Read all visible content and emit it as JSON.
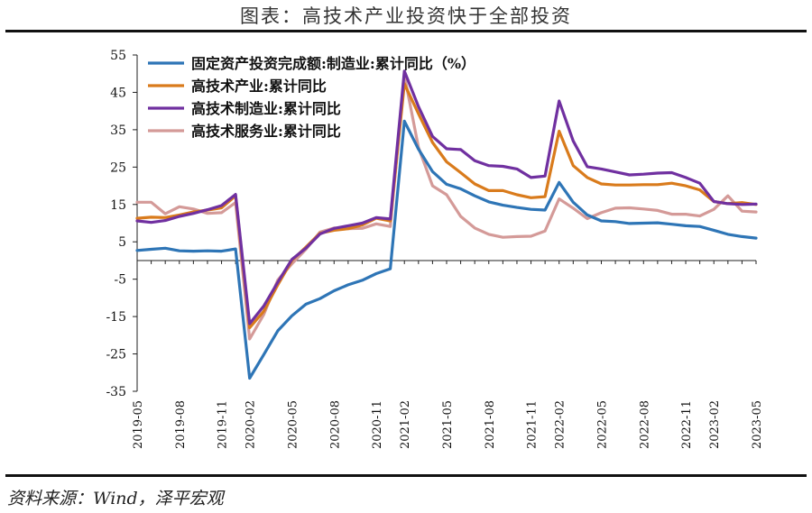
{
  "header": {
    "title": "图表：高技术产业投资快于全部投资"
  },
  "footer": {
    "source": "资料来源：Wind，泽平宏观"
  },
  "chart_data": {
    "type": "line",
    "title": "图表：高技术产业投资快于全部投资",
    "xlabel": "",
    "ylabel": "",
    "ylim": [
      -35,
      55
    ],
    "yticks": [
      55,
      45,
      35,
      25,
      15,
      5,
      -5,
      -15,
      -25,
      -35
    ],
    "grid": false,
    "legend_position": "top-left",
    "x": [
      "2019-05",
      "2019-06",
      "2019-07",
      "2019-08",
      "2019-09",
      "2019-10",
      "2019-11",
      "2019-12",
      "2020-02",
      "2020-03",
      "2020-04",
      "2020-05",
      "2020-06",
      "2020-07",
      "2020-08",
      "2020-09",
      "2020-10",
      "2020-11",
      "2020-12",
      "2021-02",
      "2021-03",
      "2021-04",
      "2021-05",
      "2021-06",
      "2021-07",
      "2021-08",
      "2021-09",
      "2021-10",
      "2021-11",
      "2021-12",
      "2022-02",
      "2022-03",
      "2022-04",
      "2022-05",
      "2022-06",
      "2022-07",
      "2022-08",
      "2022-09",
      "2022-10",
      "2022-11",
      "2022-12",
      "2023-02",
      "2023-03",
      "2023-04",
      "2023-05"
    ],
    "xticks": [
      "2019-05",
      "2019-08",
      "2019-11",
      "2020-02",
      "2020-05",
      "2020-08",
      "2020-11",
      "2021-02",
      "2021-05",
      "2021-08",
      "2021-11",
      "2022-02",
      "2022-05",
      "2022-08",
      "2022-11",
      "2023-02",
      "2023-05"
    ],
    "series": [
      {
        "name": "固定资产投资完成额:制造业:累计同比（%）",
        "color": "#2e75b6",
        "values": [
          2.7,
          3.0,
          3.3,
          2.6,
          2.5,
          2.6,
          2.5,
          3.1,
          -31.5,
          -25.2,
          -18.8,
          -14.8,
          -11.7,
          -10.2,
          -8.1,
          -6.5,
          -5.3,
          -3.5,
          -2.2,
          37.3,
          29.8,
          23.8,
          20.4,
          19.2,
          17.3,
          15.7,
          14.8,
          14.2,
          13.7,
          13.5,
          20.9,
          15.6,
          12.2,
          10.6,
          10.4,
          9.9,
          10.0,
          10.1,
          9.7,
          9.3,
          9.1,
          8.1,
          7.0,
          6.4,
          6.0
        ]
      },
      {
        "name": "高技术产业:累计同比",
        "color": "#d97b1c",
        "values": [
          11.3,
          11.6,
          11.5,
          12.2,
          13.0,
          13.5,
          14.1,
          17.3,
          -18.0,
          -13.6,
          -6.5,
          0.0,
          3.6,
          7.3,
          8.1,
          8.5,
          9.5,
          11.3,
          10.6,
          47.3,
          39.3,
          31.6,
          26.4,
          23.5,
          20.5,
          18.7,
          18.7,
          17.6,
          16.8,
          17.1,
          34.6,
          25.4,
          22.2,
          20.5,
          20.2,
          20.2,
          20.3,
          20.3,
          20.7,
          20.0,
          18.9,
          15.8,
          15.2,
          15.5,
          15.0
        ]
      },
      {
        "name": "高技术制造业:累计同比",
        "color": "#7030a0",
        "values": [
          10.6,
          10.2,
          10.7,
          11.8,
          12.6,
          13.6,
          14.7,
          17.7,
          -16.9,
          -12.2,
          -5.8,
          0.3,
          3.3,
          7.1,
          8.6,
          9.3,
          10.0,
          11.5,
          11.1,
          50.7,
          41.2,
          33.2,
          29.9,
          29.7,
          26.7,
          25.4,
          25.2,
          24.5,
          22.2,
          22.6,
          42.7,
          32.0,
          25.1,
          24.5,
          23.7,
          22.9,
          23.1,
          23.4,
          23.5,
          22.2,
          20.7,
          15.8,
          15.2,
          15.0,
          15.1
        ]
      },
      {
        "name": "高技术服务业:累计同比",
        "color": "#d49a98",
        "values": [
          15.6,
          15.6,
          12.5,
          14.4,
          13.8,
          12.6,
          12.8,
          15.5,
          -21.0,
          -14.5,
          -5.2,
          -0.9,
          3.0,
          7.6,
          8.7,
          8.5,
          8.6,
          9.8,
          9.1,
          49.6,
          30.3,
          20.0,
          17.6,
          11.8,
          8.7,
          7.0,
          6.2,
          6.4,
          6.5,
          7.9,
          16.5,
          14.0,
          11.2,
          12.8,
          14.0,
          14.1,
          13.8,
          13.4,
          12.4,
          12.4,
          11.9,
          13.7,
          17.3,
          13.2,
          13.0
        ]
      }
    ]
  }
}
